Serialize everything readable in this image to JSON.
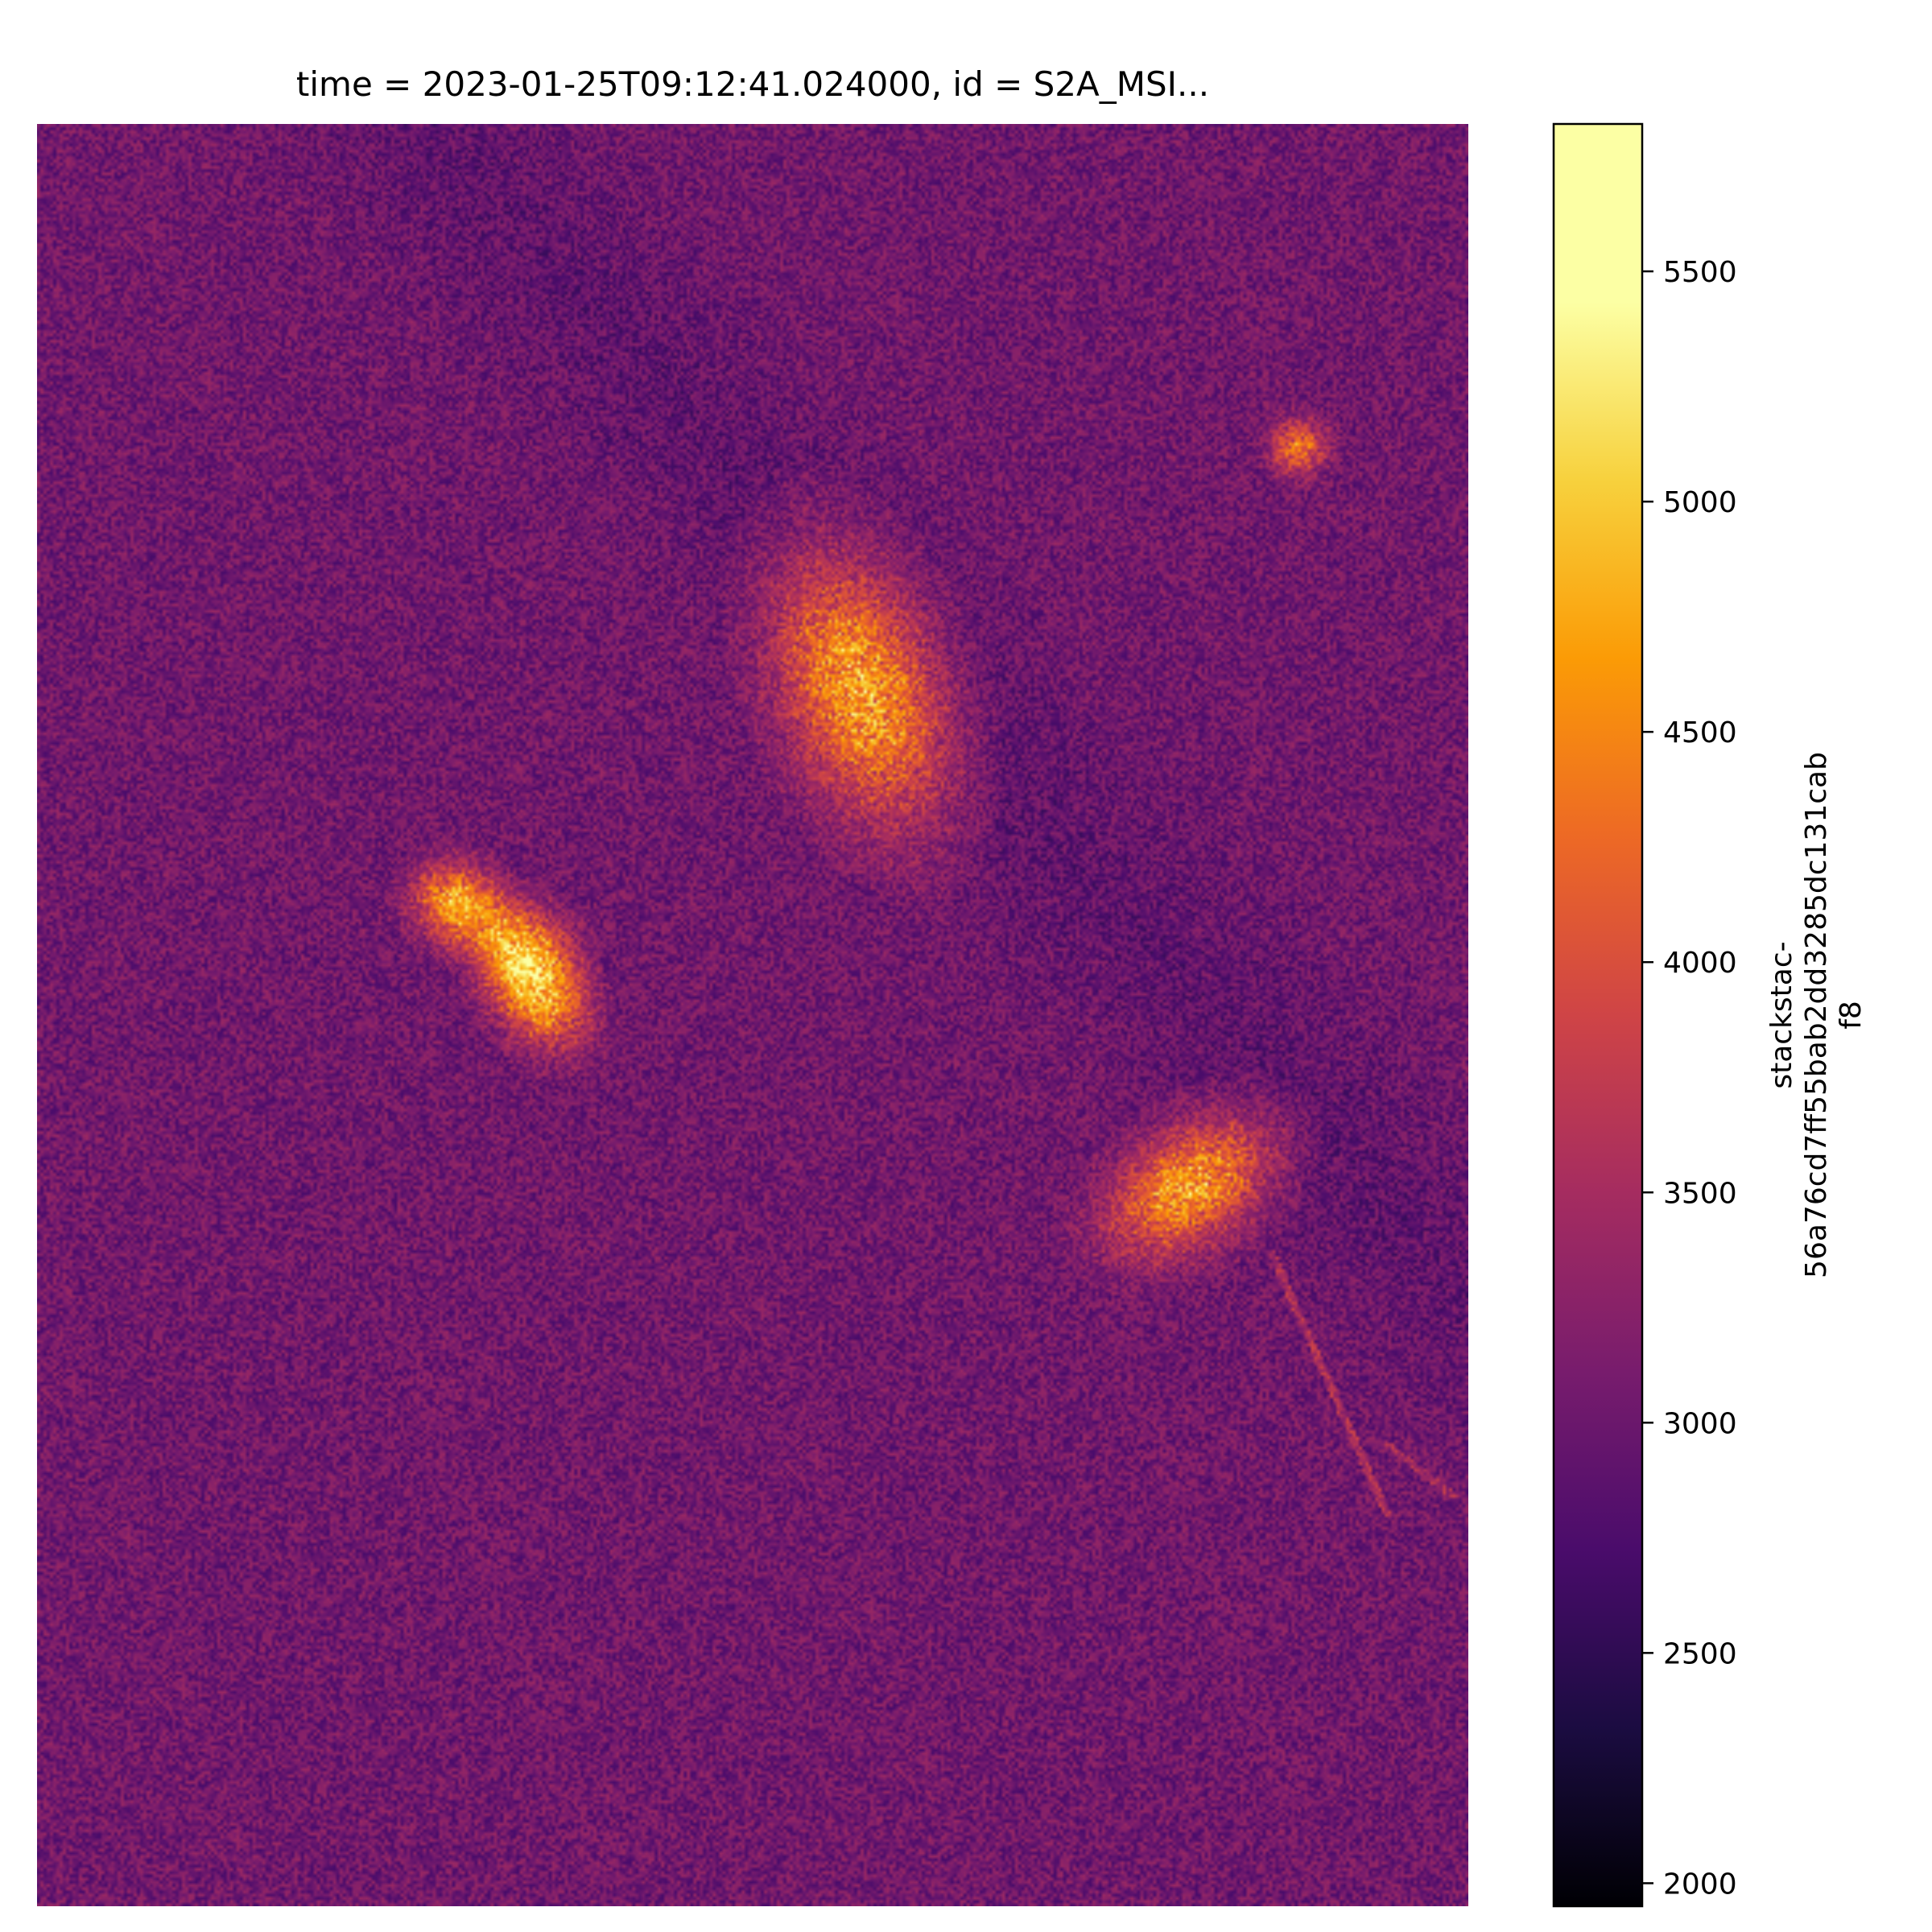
{
  "chart_data": {
    "type": "heatmap",
    "title": "time = 2023-01-25T09:12:41.024000, id = S2A_MSI...",
    "xlabel": "",
    "ylabel": "",
    "axes_visible": false,
    "grid": false,
    "colormap": "inferno",
    "colorbar": {
      "label_lines": [
        "stackstac-",
        "56a76cd7ff55bab2dd3285dc131cab",
        "f8"
      ],
      "vmin": 1950,
      "vmax": 5820,
      "ticks": [
        2000,
        2500,
        3000,
        3500,
        4000,
        4500,
        5000,
        5500
      ],
      "tick_labels": [
        "2000",
        "2500",
        "3000",
        "3500",
        "4000",
        "4500",
        "5000",
        "5500"
      ]
    },
    "background_value": 3050,
    "bright_regions": [
      {
        "label": "upper-center blob",
        "peak_value": 5100
      },
      {
        "label": "left curved blob",
        "peak_value": 4900
      },
      {
        "label": "lower-right blob",
        "peak_value": 4950
      },
      {
        "label": "small upper-right blob",
        "peak_value": 4600
      },
      {
        "label": "thin linear feature to lower-right edge",
        "peak_value": 3700
      }
    ]
  }
}
